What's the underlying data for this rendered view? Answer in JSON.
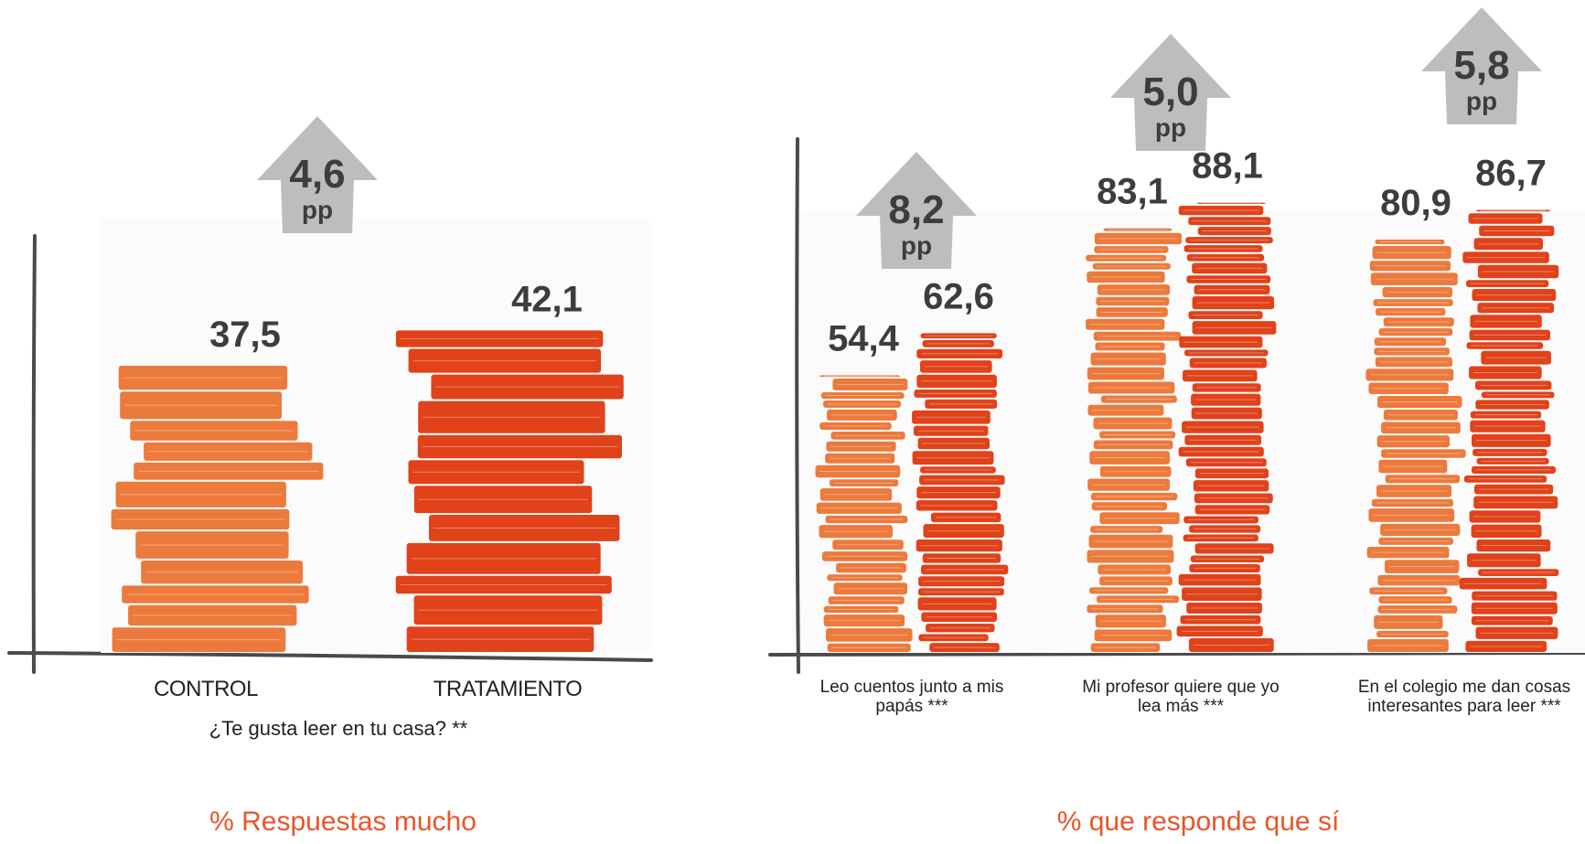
{
  "chart_data": [
    {
      "type": "bar",
      "categories": [
        "CONTROL",
        "TRATAMIENTO"
      ],
      "values": [
        37.5,
        42.1
      ],
      "value_labels": [
        "37,5",
        "42,1"
      ],
      "xlabel": "¿Te gusta leer en tu casa? **",
      "ylabel": "",
      "differences": [
        {
          "value": "4,6",
          "unit": "pp"
        }
      ],
      "ylim": [
        0,
        100
      ],
      "footer": "% Respuestas mucho",
      "colors": {
        "control": "#ec7a3c",
        "treatment": "#e0421a"
      }
    },
    {
      "type": "bar",
      "categories": [
        [
          "Leo cuentos junto a mis",
          "papás ***"
        ],
        [
          "Mi profesor quiere que yo",
          "lea más ***"
        ],
        [
          "En el colegio me dan cosas",
          "interesantes para leer ***"
        ]
      ],
      "series": [
        {
          "values": [
            54.4,
            83.1,
            80.9
          ],
          "labels": [
            "54,4",
            "83,1",
            "80,9"
          ]
        },
        {
          "values": [
            62.6,
            88.1,
            86.7
          ],
          "labels": [
            "62,6",
            "88,1",
            "86,7"
          ]
        }
      ],
      "differences": [
        {
          "value": "8,2",
          "unit": "pp"
        },
        {
          "value": "5,0",
          "unit": "pp"
        },
        {
          "value": "5,8",
          "unit": "pp"
        }
      ],
      "ylim": [
        0,
        100
      ],
      "footer": "% que responde que sí",
      "colors": {
        "control": "#ec7a3c",
        "treatment": "#e0421a"
      }
    }
  ]
}
